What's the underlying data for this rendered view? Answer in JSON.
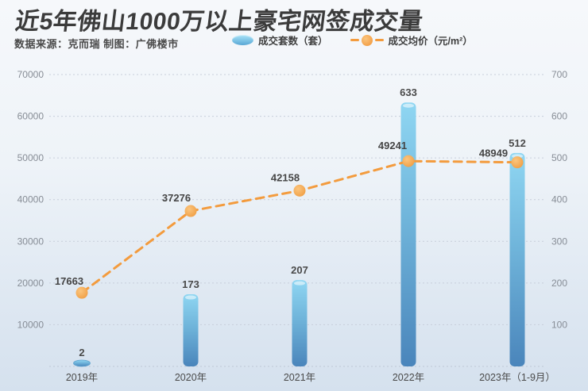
{
  "header": {
    "title": "近5年佛山1000万以上豪宅网签成交量",
    "source_note": "数据来源：克而瑞 制图：广佛楼市"
  },
  "legend": {
    "bars_label": "成交套数（套）",
    "line_label": "成交均价（元/m²）"
  },
  "chart_data": {
    "type": "bar+line combo",
    "title": "近5年佛山1000万以上豪宅网签成交量",
    "categories": [
      "2019年",
      "2020年",
      "2021年",
      "2022年",
      "2023年（1-9月）"
    ],
    "series": [
      {
        "name": "成交套数（套）",
        "type": "bar",
        "axis": "right",
        "values": [
          2,
          173,
          207,
          633,
          512
        ]
      },
      {
        "name": "成交均价（元/m²）",
        "type": "line",
        "axis": "left",
        "values": [
          17663,
          37276,
          42158,
          49241,
          48949
        ]
      }
    ],
    "left_axis": {
      "min": 0,
      "max": 70000,
      "step": 10000,
      "tick_labels": [
        "10000",
        "20000",
        "30000",
        "40000",
        "50000",
        "60000",
        "70000"
      ]
    },
    "right_axis": {
      "min": 0,
      "max": 700,
      "step": 100,
      "tick_labels": [
        "100",
        "200",
        "300",
        "400",
        "500",
        "600",
        "700"
      ]
    },
    "grid": "horizontal dashed lines",
    "legend_position": "top center",
    "data_labels": "values shown above every bar and line point"
  },
  "colors": {
    "background_top": "#F6F8FB",
    "background_bottom": "#D5E1EE",
    "bar_gradient_top": "#8FD6F2",
    "bar_gradient_bottom": "#4A85BB",
    "line": "#F39B3D",
    "point_fill": "#F5A94E",
    "grid_line": "#C7CEDA",
    "tick_text": "#878D96",
    "data_label_text": "#4A4A4A",
    "title_text": "#3B3B3B"
  }
}
